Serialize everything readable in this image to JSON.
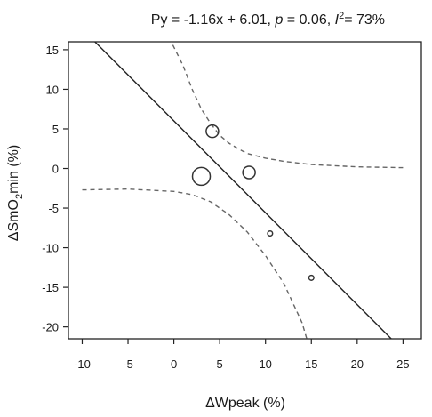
{
  "chart_data": {
    "type": "scatter",
    "title": {
      "equation": "Py = -1.16x + 6.01, ",
      "p_symbol": "p",
      "p_value": " = 0.06, ",
      "i2_symbol": "I",
      "i2_sup": "2",
      "i2_value": "= 73%"
    },
    "xlabel": "ΔWpeak (%)",
    "ylabel": {
      "prefix": "ΔSmO",
      "sub": "2",
      "suffix": "min (%)"
    },
    "xlim": [
      -11.5,
      27
    ],
    "ylim": [
      -21.5,
      16
    ],
    "xticks": [
      -10,
      -5,
      0,
      5,
      10,
      15,
      20,
      25
    ],
    "yticks": [
      15,
      10,
      5,
      0,
      -5,
      -10,
      -15,
      -20
    ],
    "regression": {
      "slope": -1.16,
      "intercept": 6.01
    },
    "confidence_band": {
      "upper": [
        [
          -0.5,
          16.5
        ],
        [
          1,
          13
        ],
        [
          2,
          10
        ],
        [
          3,
          7.5
        ],
        [
          4,
          5.7
        ],
        [
          5,
          4.2
        ],
        [
          6,
          3.2
        ],
        [
          7,
          2.5
        ],
        [
          8,
          1.9
        ],
        [
          10,
          1.3
        ],
        [
          12,
          0.9
        ],
        [
          15,
          0.5
        ],
        [
          20,
          0.2
        ],
        [
          25,
          0.1
        ]
      ],
      "lower": [
        [
          -10,
          -2.7
        ],
        [
          -5,
          -2.6
        ],
        [
          0,
          -2.9
        ],
        [
          2,
          -3.3
        ],
        [
          4,
          -4.2
        ],
        [
          6,
          -5.8
        ],
        [
          8,
          -8.0
        ],
        [
          10,
          -11.0
        ],
        [
          12,
          -14.5
        ],
        [
          14,
          -19.5
        ],
        [
          14.5,
          -21.5
        ]
      ]
    },
    "points": [
      {
        "x": 3,
        "y": -1,
        "weight": 3
      },
      {
        "x": 4.2,
        "y": 4.7,
        "weight": 2
      },
      {
        "x": 8.2,
        "y": -0.5,
        "weight": 2
      },
      {
        "x": 10.5,
        "y": -8.2,
        "weight": 1
      },
      {
        "x": 15,
        "y": -13.8,
        "weight": 1
      }
    ],
    "grid": false,
    "legend": "none",
    "colors": {
      "line": "#222222",
      "band": "#666666",
      "point_stroke": "#333333",
      "axis": "#222222"
    }
  }
}
